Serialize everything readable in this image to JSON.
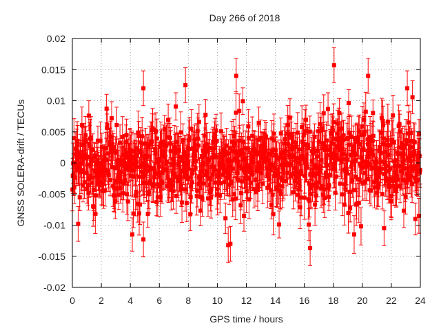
{
  "chart_data": {
    "type": "scatter",
    "title": "Day 266 of 2018",
    "xlabel": "GPS time / hours",
    "ylabel": "GNSS SOLERA-drift / TECUs",
    "xlim": [
      0,
      24
    ],
    "ylim": [
      -0.02,
      0.02
    ],
    "xticks": [
      0,
      2,
      4,
      6,
      8,
      10,
      12,
      14,
      16,
      18,
      20,
      22,
      24
    ],
    "xtick_labels": [
      "0",
      "2",
      "4",
      "6",
      "8",
      "10",
      "12",
      "14",
      "16",
      "18",
      "20",
      "22",
      "24"
    ],
    "yticks": [
      -0.02,
      -0.015,
      -0.01,
      -0.005,
      0,
      0.005,
      0.01,
      0.015,
      0.02
    ],
    "ytick_labels": [
      "-0.02",
      "-0.015",
      "-0.01",
      "-0.005",
      "0",
      "0.005",
      "0.01",
      "0.015",
      "0.02"
    ],
    "grid": true,
    "marker_color": "#ff0000",
    "series": [
      {
        "name": "SOLERA drift",
        "marker": "square",
        "error_bars": true,
        "sample_interval_hours": 0.025,
        "value_spread_sd": 0.0035,
        "error_bar_half_width": 0.0028,
        "notable_points": [
          {
            "x": 4.9,
            "y": 0.012
          },
          {
            "x": 4.9,
            "y": -0.0123
          },
          {
            "x": 7.8,
            "y": 0.0125
          },
          {
            "x": 11.3,
            "y": 0.014
          },
          {
            "x": 10.9,
            "y": -0.013
          },
          {
            "x": 10.75,
            "y": -0.0132
          },
          {
            "x": 16.4,
            "y": -0.0137
          },
          {
            "x": 18.05,
            "y": 0.0157
          },
          {
            "x": 20.4,
            "y": 0.014
          },
          {
            "x": 23.1,
            "y": 0.012
          },
          {
            "x": 0.4,
            "y": -0.0098
          },
          {
            "x": 21.5,
            "y": -0.0105
          },
          {
            "x": 23.9,
            "y": -0.0085
          }
        ]
      }
    ]
  }
}
